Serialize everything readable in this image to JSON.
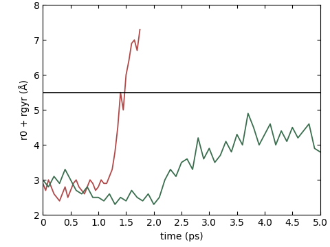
{
  "chart_data": {
    "type": "line",
    "y_label": "r0 + rgyr (Å)",
    "x_label": "time (ps)",
    "xlim": [
      0,
      5
    ],
    "xticks": [
      0,
      {
        "value": 0.5,
        "label": "0.5"
      },
      {
        "value": 1,
        "label": "1.0"
      },
      {
        "value": 1.5,
        "label": "1.5"
      },
      {
        "value": 2,
        "label": "2.0"
      },
      {
        "value": 2.5,
        "label": "2.5"
      },
      {
        "value": 3,
        "label": "3.0"
      },
      {
        "value": 3.5,
        "label": "3.5"
      },
      {
        "value": 4,
        "label": "4.0"
      },
      {
        "value": 4.5,
        "label": "4.5"
      },
      {
        "value": 5,
        "label": "5.0"
      }
    ],
    "ylim": [
      2,
      8
    ],
    "yticks": [
      2,
      3,
      4,
      5,
      6,
      7,
      8
    ],
    "reference_line": 5.5,
    "reference_color": "#000000",
    "series": [
      {
        "color": "#b04a4a",
        "x": [
          0,
          0.05,
          0.1,
          0.15,
          0.2,
          0.25,
          0.3,
          0.35,
          0.4,
          0.45,
          0.5,
          0.55,
          0.6,
          0.65,
          0.7,
          0.75,
          0.8,
          0.85,
          0.9,
          0.95,
          1.0,
          1.05,
          1.1,
          1.15,
          1.2,
          1.25,
          1.3,
          1.35,
          1.4,
          1.45,
          1.5,
          1.55,
          1.6,
          1.65,
          1.7,
          1.75
        ],
        "values": [
          2.9,
          2.7,
          3.0,
          2.8,
          2.6,
          2.5,
          2.4,
          2.6,
          2.8,
          2.5,
          2.7,
          2.9,
          3.0,
          2.8,
          2.7,
          2.6,
          2.8,
          3.0,
          2.9,
          2.7,
          2.8,
          3.0,
          2.9,
          2.9,
          3.1,
          3.3,
          3.8,
          4.5,
          5.5,
          5.0,
          6.0,
          6.4,
          6.9,
          7.0,
          6.7,
          7.3
        ]
      },
      {
        "color": "#3a6e4e",
        "x": [
          0,
          0.1,
          0.2,
          0.3,
          0.4,
          0.5,
          0.6,
          0.7,
          0.8,
          0.9,
          1.0,
          1.1,
          1.2,
          1.3,
          1.4,
          1.5,
          1.6,
          1.7,
          1.8,
          1.9,
          2.0,
          2.1,
          2.2,
          2.3,
          2.4,
          2.5,
          2.6,
          2.7,
          2.8,
          2.9,
          3.0,
          3.1,
          3.2,
          3.3,
          3.4,
          3.5,
          3.6,
          3.7,
          3.8,
          3.9,
          4.0,
          4.1,
          4.2,
          4.3,
          4.4,
          4.5,
          4.6,
          4.7,
          4.8,
          4.9,
          5.0
        ],
        "values": [
          3.0,
          2.8,
          3.1,
          2.9,
          3.3,
          3.0,
          2.7,
          2.6,
          2.8,
          2.5,
          2.5,
          2.4,
          2.6,
          2.3,
          2.5,
          2.4,
          2.7,
          2.5,
          2.4,
          2.6,
          2.3,
          2.5,
          3.0,
          3.3,
          3.1,
          3.5,
          3.6,
          3.3,
          4.2,
          3.6,
          3.9,
          3.5,
          3.7,
          4.1,
          3.8,
          4.3,
          4.0,
          4.9,
          4.5,
          4.0,
          4.3,
          4.6,
          4.0,
          4.4,
          4.1,
          4.5,
          4.2,
          4.4,
          4.6,
          3.9,
          3.8
        ]
      }
    ]
  }
}
